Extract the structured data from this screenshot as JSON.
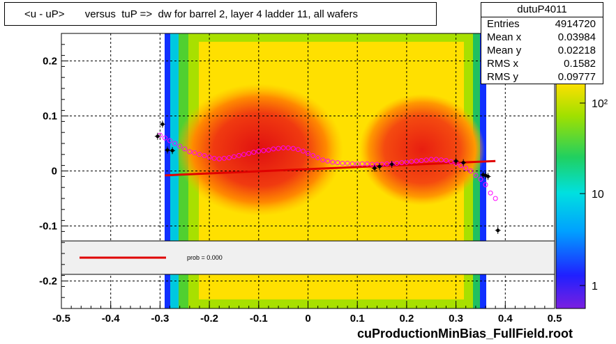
{
  "chart_data": {
    "type": "heatmap",
    "title": "<u - uP>       versus  tuP =>  dw for barrel 2, layer 4 ladder 11, all wafers",
    "xlim": [
      -0.5,
      0.5
    ],
    "ylim": [
      -0.25,
      0.25
    ],
    "x_ticks": [
      "-0.5",
      "-0.4",
      "-0.3",
      "-0.2",
      "-0.1",
      "0",
      "0.1",
      "0.2",
      "0.3",
      "0.4",
      "0.5"
    ],
    "y_ticks": [
      "0.2",
      "0.1",
      "0",
      "-0.1",
      "-0.2"
    ],
    "colorbar_ticks": [
      "10²",
      "10",
      "1"
    ],
    "stats": {
      "name": "dutuP4011",
      "rows": [
        {
          "label": "Entries",
          "value": "4914720"
        },
        {
          "label": "Mean x",
          "value": "0.03984"
        },
        {
          "label": "Mean y",
          "value": "0.02218"
        },
        {
          "label": "RMS x",
          "value": "0.1582"
        },
        {
          "label": "RMS y",
          "value": "0.09777"
        }
      ]
    },
    "legend_text": "prob = 0.000",
    "fit_line": {
      "x": [
        -0.29,
        0.38
      ],
      "y": [
        -0.008,
        0.018
      ]
    },
    "profile_points": {
      "x": [
        -0.3,
        -0.29,
        -0.28,
        -0.27,
        -0.26,
        -0.25,
        -0.24,
        -0.23,
        -0.22,
        -0.21,
        -0.2,
        -0.19,
        -0.18,
        -0.17,
        -0.16,
        -0.15,
        -0.14,
        -0.13,
        -0.12,
        -0.11,
        -0.1,
        -0.09,
        -0.08,
        -0.07,
        -0.06,
        -0.05,
        -0.04,
        -0.03,
        -0.02,
        -0.01,
        0.0,
        0.01,
        0.02,
        0.03,
        0.04,
        0.05,
        0.06,
        0.07,
        0.08,
        0.09,
        0.1,
        0.11,
        0.12,
        0.13,
        0.14,
        0.15,
        0.16,
        0.17,
        0.18,
        0.19,
        0.2,
        0.21,
        0.22,
        0.23,
        0.24,
        0.25,
        0.26,
        0.27,
        0.28,
        0.29,
        0.3,
        0.31,
        0.32,
        0.33,
        0.34,
        0.35,
        0.36,
        0.37,
        0.38
      ],
      "y": [
        0.065,
        0.06,
        0.055,
        0.05,
        0.045,
        0.04,
        0.035,
        0.033,
        0.03,
        0.028,
        0.025,
        0.023,
        0.022,
        0.023,
        0.024,
        0.026,
        0.028,
        0.03,
        0.032,
        0.034,
        0.036,
        0.037,
        0.038,
        0.04,
        0.041,
        0.042,
        0.042,
        0.041,
        0.039,
        0.036,
        0.032,
        0.028,
        0.024,
        0.02,
        0.018,
        0.016,
        0.015,
        0.014,
        0.014,
        0.013,
        0.013,
        0.013,
        0.013,
        0.012,
        0.012,
        0.012,
        0.013,
        0.013,
        0.014,
        0.015,
        0.016,
        0.017,
        0.018,
        0.019,
        0.02,
        0.021,
        0.021,
        0.02,
        0.019,
        0.017,
        0.014,
        0.01,
        0.005,
        0.0,
        -0.008,
        -0.015,
        -0.025,
        -0.04,
        -0.05
      ]
    },
    "black_points": {
      "x": [
        -0.305,
        -0.295,
        -0.285,
        -0.275,
        0.135,
        0.145,
        0.17,
        0.3,
        0.315,
        0.355,
        0.36,
        0.365,
        0.385
      ],
      "y": [
        0.063,
        0.085,
        0.038,
        0.037,
        0.005,
        0.008,
        0.012,
        0.018,
        0.015,
        -0.007,
        -0.008,
        -0.01,
        -0.108
      ]
    }
  },
  "footer_label": "cuProductionMinBias_FullField.root"
}
